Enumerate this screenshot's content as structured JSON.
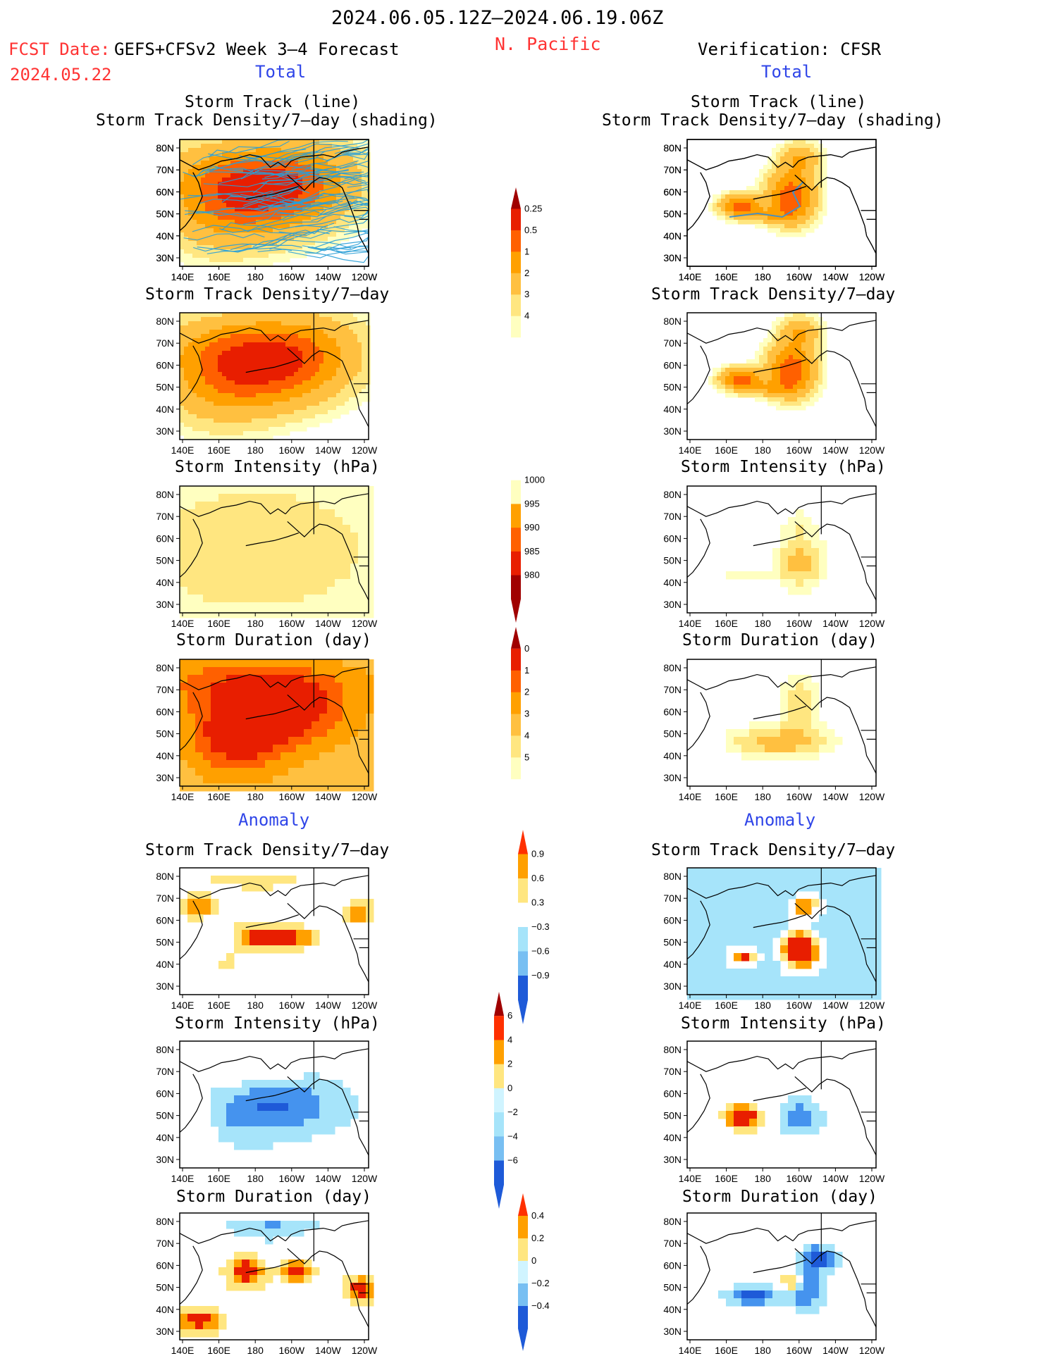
{
  "header": {
    "date_range": "2024.06.05.12Z–2024.06.19.06Z",
    "fcst_date_label": "FCST Date:",
    "fcst_date_value": "2024.05.22",
    "forecast_title": "GEFS+CFSv2 Week 3–4 Forecast",
    "region": "N. Pacific",
    "verification": "Verification: CFSR"
  },
  "section_labels": {
    "total": "Total",
    "anomaly": "Anomaly"
  },
  "panel_titles": {
    "track_line": "Storm Track (line)",
    "track_shading": "Storm Track Density/7–day (shading)",
    "density": "Storm Track Density/7–day",
    "intensity": "Storm Intensity (hPa)",
    "duration": "Storm Duration (day)"
  },
  "map_axes": {
    "lon_ticks": [
      "140E",
      "160E",
      "180",
      "160W",
      "140W",
      "120W"
    ],
    "lat_ticks": [
      "80N",
      "70N",
      "60N",
      "50N",
      "40N",
      "30N"
    ]
  },
  "colors": {
    "title_red": "#ff3333",
    "label_blue": "#2f45e8",
    "track_line": "#2a9fd6",
    "ramp_warm": [
      "#ffffc0",
      "#ffe680",
      "#ffc040",
      "#ffa000",
      "#ff6000",
      "#e81e00",
      "#a00000"
    ],
    "ramp_cool": [
      "#d0f4ff",
      "#a6e4fa",
      "#78bff2",
      "#4593ee",
      "#1e5ad8"
    ]
  },
  "chart_data": [
    {
      "id": "total-density-shading",
      "type": "heatmap",
      "colorbar_levels": [
        "0.25",
        "0.5",
        "1",
        "2",
        "3",
        "4"
      ]
    },
    {
      "id": "total-intensity",
      "type": "heatmap",
      "colorbar_levels": [
        "1000",
        "995",
        "990",
        "985",
        "980"
      ]
    },
    {
      "id": "total-duration",
      "type": "heatmap",
      "colorbar_levels": [
        "0",
        "1",
        "2",
        "3",
        "4",
        "5"
      ]
    },
    {
      "id": "anomaly-density",
      "type": "heatmap",
      "colorbar_levels": [
        "0.9",
        "0.6",
        "0.3",
        "−0.3",
        "−0.6",
        "−0.9"
      ]
    },
    {
      "id": "anomaly-intensity",
      "type": "heatmap",
      "colorbar_levels": [
        "6",
        "4",
        "2",
        "0",
        "−2",
        "−4",
        "−6"
      ]
    },
    {
      "id": "anomaly-duration",
      "type": "heatmap",
      "colorbar_levels": [
        "0.4",
        "0.2",
        "0",
        "−0.2",
        "−0.4"
      ]
    }
  ]
}
